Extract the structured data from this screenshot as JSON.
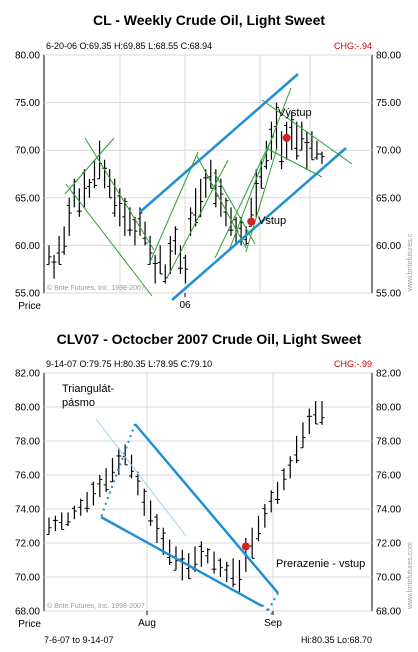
{
  "charts": [
    {
      "title": "CL - Weekly Crude Oil, Light Sweet",
      "ohlc_header": "6-20-06 O:69.35 H:69.85 L:68.55 C:68.94",
      "chg": "CHG:-.94",
      "price_label": "Price",
      "x_label": "06",
      "watermark": "© Brite Futures, Inc. 1998-2007",
      "side_watermark": "www.britefutures.c",
      "annotations": [
        "Výstup",
        "Vstup"
      ]
    },
    {
      "title": "CLV07 -  Octocber 2007 Crude Oil, Light Sweet",
      "ohlc_header": "9-14-07 O:79.75 H:80.35 L:78.95 C:79.10",
      "chg": "CHG:-.99",
      "price_label": "Price",
      "x_labels": [
        "Aug",
        "Sep"
      ],
      "watermark": "© Brite Futures, Inc. 1998-2007",
      "side_watermark": "www.britefutures.com",
      "annotations": [
        "Triangulát-",
        "pásmo",
        "Prerazenie - vstup"
      ],
      "footer_left": "7-6-07 to 9-14-07",
      "footer_right": "Hi:80.35 Lo:68.70"
    }
  ],
  "chart_data": [
    {
      "type": "ohlc",
      "title": "CL - Weekly Crude Oil, Light Sweet",
      "ylim": [
        55,
        80
      ],
      "yticks": [
        55,
        60,
        65,
        70,
        75,
        80
      ],
      "y_tick_labels": [
        "55.00",
        "60.00",
        "65.00",
        "70.00",
        "75.00",
        "80.00"
      ],
      "x_tick_labels": [
        "06"
      ],
      "bars": [
        [
          58,
          60
        ],
        [
          56.5,
          59
        ],
        [
          58,
          61
        ],
        [
          59,
          62
        ],
        [
          61,
          65
        ],
        [
          64,
          67
        ],
        [
          63,
          66
        ],
        [
          64,
          68
        ],
        [
          65,
          67
        ],
        [
          66,
          69
        ],
        [
          67,
          71
        ],
        [
          66,
          69
        ],
        [
          65,
          68
        ],
        [
          63,
          67
        ],
        [
          62,
          66
        ],
        [
          61,
          65
        ],
        [
          61,
          64
        ],
        [
          60,
          63
        ],
        [
          61,
          64
        ],
        [
          60,
          62.5
        ],
        [
          58,
          61
        ],
        [
          56,
          59
        ],
        [
          57,
          60
        ],
        [
          56,
          58
        ],
        [
          57,
          61
        ],
        [
          59,
          62
        ],
        [
          57,
          60
        ],
        [
          56,
          59
        ],
        [
          61,
          64
        ],
        [
          62,
          66
        ],
        [
          63,
          67
        ],
        [
          65,
          68
        ],
        [
          66,
          69
        ],
        [
          64,
          68
        ],
        [
          63,
          67
        ],
        [
          62,
          65
        ],
        [
          61,
          64
        ],
        [
          60,
          63
        ],
        [
          60,
          63
        ],
        [
          60,
          62
        ],
        [
          62,
          65
        ],
        [
          63,
          68
        ],
        [
          66,
          69
        ],
        [
          68,
          71
        ],
        [
          69,
          73
        ],
        [
          70,
          75
        ],
        [
          68,
          72
        ],
        [
          69,
          73
        ],
        [
          70,
          74
        ],
        [
          69,
          73
        ],
        [
          70,
          73
        ],
        [
          68,
          72
        ],
        [
          69,
          72
        ],
        [
          69,
          71
        ],
        [
          68.55,
          69.85
        ]
      ],
      "markers": [
        {
          "bar": 40,
          "y": 62.5,
          "label": "Vstup"
        },
        {
          "bar": 47,
          "y": 71.3,
          "label": "Výstup"
        }
      ]
    },
    {
      "type": "ohlc",
      "title": "CLV07 -  Octocber 2007 Crude Oil, Light Sweet",
      "ylim": [
        68,
        82
      ],
      "yticks": [
        68,
        70,
        72,
        74,
        76,
        78,
        80,
        82
      ],
      "y_tick_labels": [
        "68.00",
        "70.00",
        "72.00",
        "74.00",
        "76.00",
        "78.00",
        "80.00",
        "82.00"
      ],
      "x_tick_labels": [
        "Aug",
        "Sep"
      ],
      "bars": [
        [
          72.5,
          73.5
        ],
        [
          72.7,
          73.6
        ],
        [
          72.8,
          73.8
        ],
        [
          73,
          73.8
        ],
        [
          73.4,
          74.2
        ],
        [
          73.6,
          74.6
        ],
        [
          73.8,
          75
        ],
        [
          74.2,
          75.6
        ],
        [
          74.7,
          76
        ],
        [
          75,
          76.4
        ],
        [
          75.6,
          77
        ],
        [
          76,
          77.6
        ],
        [
          76.6,
          77.8
        ],
        [
          75.8,
          77.2
        ],
        [
          74.8,
          76.2
        ],
        [
          73.6,
          75.2
        ],
        [
          73,
          74.5
        ],
        [
          72,
          73.7
        ],
        [
          71.3,
          72.9
        ],
        [
          70.7,
          72.2
        ],
        [
          70.4,
          71.8
        ],
        [
          69.8,
          71.6
        ],
        [
          69.9,
          71.4
        ],
        [
          70.3,
          71.8
        ],
        [
          70.6,
          72.1
        ],
        [
          70.8,
          71.7
        ],
        [
          70.2,
          71.5
        ],
        [
          70,
          71.1
        ],
        [
          69.7,
          70.9
        ],
        [
          69.4,
          71.1
        ],
        [
          69.1,
          71
        ],
        [
          70.3,
          72.3
        ],
        [
          71.1,
          72.9
        ],
        [
          72.1,
          73.6
        ],
        [
          72.9,
          74.3
        ],
        [
          73.8,
          75.1
        ],
        [
          74.3,
          75.6
        ],
        [
          75.1,
          76.4
        ],
        [
          75.8,
          77.1
        ],
        [
          76.7,
          78.3
        ],
        [
          77.6,
          79.1
        ],
        [
          78.4,
          79.9
        ],
        [
          79,
          80.35
        ],
        [
          78.95,
          80.35
        ]
      ],
      "markers": [
        {
          "bar": 31,
          "y": 71.8,
          "label": "Prerazenie - vstup"
        }
      ]
    }
  ]
}
